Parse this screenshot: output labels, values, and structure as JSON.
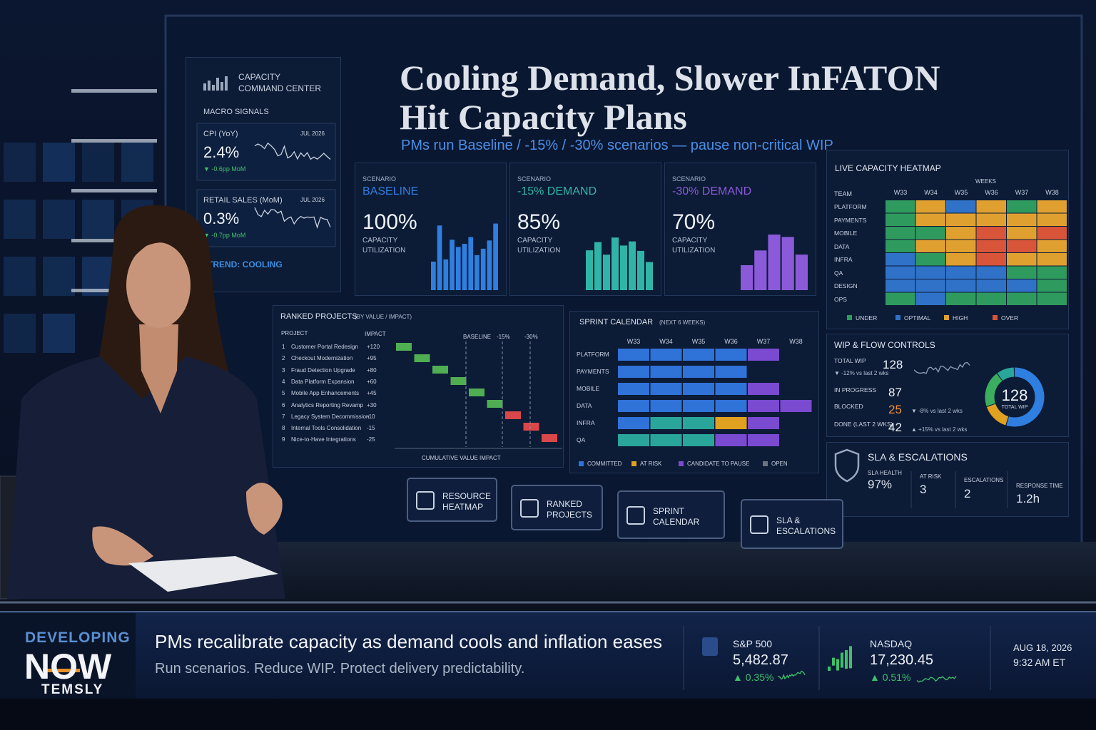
{
  "dashboard": {
    "title_lines": [
      "Cooling Demand, Slower InFATON",
      "Hit Capacity Plans"
    ],
    "subtitle": "PMs run Baseline / -15% / -30% scenarios — pause non-critical WIP"
  },
  "sidebar": {
    "brand_lines": [
      "CAPACITY",
      "COMMAND CENTER"
    ],
    "section": "MACRO SIGNALS",
    "signals": [
      {
        "name": "CPI (YoY)",
        "date": "JUL 2026",
        "value": "2.4%",
        "change": "▼ -0.6pp MoM"
      },
      {
        "name": "RETAIL SALES (MoM)",
        "date": "JUL 2026",
        "value": "0.3%",
        "change": "▼ -0.7pp MoM"
      }
    ],
    "trend": "TREND: COOLING"
  },
  "scenarios": [
    {
      "label": "SCENARIO",
      "name": "BASELINE",
      "value": "100%",
      "metric_lines": [
        "CAPACITY",
        "UTILIZATION"
      ],
      "color": "#2f7fe0"
    },
    {
      "label": "SCENARIO",
      "name": "-15% DEMAND",
      "value": "85%",
      "metric_lines": [
        "CAPACITY",
        "UTILIZATION"
      ],
      "color": "#2fb5a8"
    },
    {
      "label": "SCENARIO",
      "name": "-30% DEMAND",
      "value": "70%",
      "metric_lines": [
        "CAPACITY",
        "UTILIZATION"
      ],
      "color": "#8a5ad8"
    }
  ],
  "heatmap": {
    "title": "LIVE CAPACITY HEATMAP",
    "weeks_label": "WEEKS",
    "team_label": "TEAM",
    "weeks": [
      "W33",
      "W34",
      "W35",
      "W36",
      "W37",
      "W38"
    ],
    "rows": [
      {
        "team": "PLATFORM",
        "cells": [
          "#2f9a5e",
          "#e0a030",
          "#2f72c8",
          "#e0a030",
          "#2f9a5e",
          "#e0a030"
        ]
      },
      {
        "team": "PAYMENTS",
        "cells": [
          "#2f9a5e",
          "#e0a030",
          "#e0a030",
          "#e0a030",
          "#e0a030",
          "#e0a030"
        ]
      },
      {
        "team": "MOBILE",
        "cells": [
          "#2f9a5e",
          "#2f9a5e",
          "#e0a030",
          "#d8553a",
          "#e0a030",
          "#d8553a"
        ]
      },
      {
        "team": "DATA",
        "cells": [
          "#2f9a5e",
          "#e0a030",
          "#e0a030",
          "#d8553a",
          "#d8553a",
          "#e0a030"
        ]
      },
      {
        "team": "INFRA",
        "cells": [
          "#2f72c8",
          "#2f9a5e",
          "#e0a030",
          "#d8553a",
          "#e0a030",
          "#e0a030"
        ]
      },
      {
        "team": "QA",
        "cells": [
          "#2f72c8",
          "#2f72c8",
          "#2f72c8",
          "#2f72c8",
          "#2f9a5e",
          "#2f9a5e"
        ]
      },
      {
        "team": "DESIGN",
        "cells": [
          "#2f72c8",
          "#2f72c8",
          "#2f72c8",
          "#2f72c8",
          "#2f72c8",
          "#2f9a5e"
        ]
      },
      {
        "team": "OPS",
        "cells": [
          "#2f9a5e",
          "#2f72c8",
          "#2f9a5e",
          "#2f9a5e",
          "#2f9a5e",
          "#2f9a5e"
        ]
      }
    ],
    "legend": [
      {
        "label": "UNDER",
        "color": "#2f9a5e"
      },
      {
        "label": "OPTIMAL",
        "color": "#2f72c8"
      },
      {
        "label": "HIGH",
        "color": "#e0a030"
      },
      {
        "label": "OVER",
        "color": "#d8553a"
      }
    ]
  },
  "ranked_projects": {
    "title": "RANKED PROJECTS",
    "subtitle": "(BY VALUE / IMPACT)",
    "columns": [
      "PROJECT",
      "IMPACT"
    ],
    "rows": [
      {
        "rank": "1",
        "name": "Customer Portal Redesign",
        "impact": "+120"
      },
      {
        "rank": "2",
        "name": "Checkout Modernization",
        "impact": "+95"
      },
      {
        "rank": "3",
        "name": "Fraud Detection Upgrade",
        "impact": "+80"
      },
      {
        "rank": "4",
        "name": "Data Platform Expansion",
        "impact": "+60"
      },
      {
        "rank": "5",
        "name": "Mobile App Enhancements",
        "impact": "+45"
      },
      {
        "rank": "6",
        "name": "Analytics Reporting Revamp",
        "impact": "+30"
      },
      {
        "rank": "7",
        "name": "Legacy System Decommission",
        "impact": "-10"
      },
      {
        "rank": "8",
        "name": "Internal Tools Consolidation",
        "impact": "-15"
      },
      {
        "rank": "9",
        "name": "Nice-to-Have Integrations",
        "impact": "-25"
      }
    ],
    "markers": [
      "BASELINE",
      "-15%",
      "-30%"
    ],
    "axis_label": "CUMULATIVE VALUE IMPACT"
  },
  "sprint_calendar": {
    "title": "SPRINT CALENDAR",
    "subtitle": "(NEXT 6 WEEKS)",
    "weeks": [
      "W33",
      "W34",
      "W35",
      "W36",
      "W37",
      "W38"
    ],
    "rows": [
      {
        "team": "PLATFORM",
        "cells": [
          "#2f72d8",
          "#2f72d8",
          "#2f72d8",
          "#2f72d8",
          "#7a4ad0",
          null
        ]
      },
      {
        "team": "PAYMENTS",
        "cells": [
          "#2f72d8",
          "#2f72d8",
          "#2f72d8",
          "#2f72d8",
          null,
          null
        ]
      },
      {
        "team": "MOBILE",
        "cells": [
          "#2f72d8",
          "#2f72d8",
          "#2f72d8",
          "#2f72d8",
          "#7a4ad0",
          null
        ]
      },
      {
        "team": "DATA",
        "cells": [
          "#2f72d8",
          "#2f72d8",
          "#2f72d8",
          "#2f72d8",
          "#7a4ad0",
          "#7a4ad0"
        ]
      },
      {
        "team": "INFRA",
        "cells": [
          "#2f72d8",
          "#2aa59a",
          "#2aa59a",
          "#e0a020",
          "#7a4ad0",
          null
        ]
      },
      {
        "team": "QA",
        "cells": [
          "#2aa59a",
          "#2aa59a",
          "#2aa59a",
          "#7a4ad0",
          "#7a4ad0",
          null
        ]
      }
    ],
    "legend": [
      {
        "label": "COMMITTED",
        "color": "#2f72d8"
      },
      {
        "label": "AT RISK",
        "color": "#e0a020"
      },
      {
        "label": "CANDIDATE TO PAUSE",
        "color": "#7a4ad0"
      },
      {
        "label": "OPEN",
        "color": "#6a7382"
      }
    ]
  },
  "wip": {
    "title": "WIP & FLOW CONTROLS",
    "total": {
      "label": "TOTAL WIP",
      "value": "128",
      "change": "▼ -12% vs last 2 wks"
    },
    "in_progress": {
      "label": "IN PROGRESS",
      "value": "87"
    },
    "blocked": {
      "label": "BLOCKED",
      "value": "25",
      "change": "▼ -8% vs last 2 wks"
    },
    "done": {
      "label": "DONE (LAST 2 WKS)",
      "value": "42",
      "change": "▲ +15% vs last 2 wks"
    },
    "donut": {
      "value": "128",
      "label": "TOTAL WIP"
    }
  },
  "sla": {
    "title": "SLA & ESCALATIONS",
    "items": [
      {
        "label": "SLA HEALTH",
        "value": "97%"
      },
      {
        "label": "AT RISK",
        "value": "3"
      },
      {
        "label": "ESCALATIONS",
        "value": "2"
      },
      {
        "label": "RESPONSE TIME",
        "value": "1.2h"
      }
    ]
  },
  "buttons": [
    {
      "label_lines": [
        "RESOURCE",
        "HEATMAP"
      ]
    },
    {
      "label_lines": [
        "RANKED",
        "PROJECTS"
      ]
    },
    {
      "label_lines": [
        "SPRINT",
        "CALENDAR"
      ]
    },
    {
      "label_lines": [
        "SLA &",
        "ESCALATIONS"
      ]
    }
  ],
  "ticker": {
    "brand": {
      "top": "DEVELOPING",
      "main": "NOW",
      "network": "TEMSLY"
    },
    "headline": "PMs recalibrate capacity as demand cools and inflation eases",
    "subheadline": "Run scenarios. Reduce WIP. Protect delivery predictability.",
    "markets": [
      {
        "name": "S&P 500",
        "value": "5,482.87",
        "change": "▲ 0.35%"
      },
      {
        "name": "NASDAQ",
        "value": "17,230.45",
        "change": "▲ 0.51%"
      }
    ],
    "date": "AUG 18, 2026",
    "time": "9:32 AM ET"
  }
}
